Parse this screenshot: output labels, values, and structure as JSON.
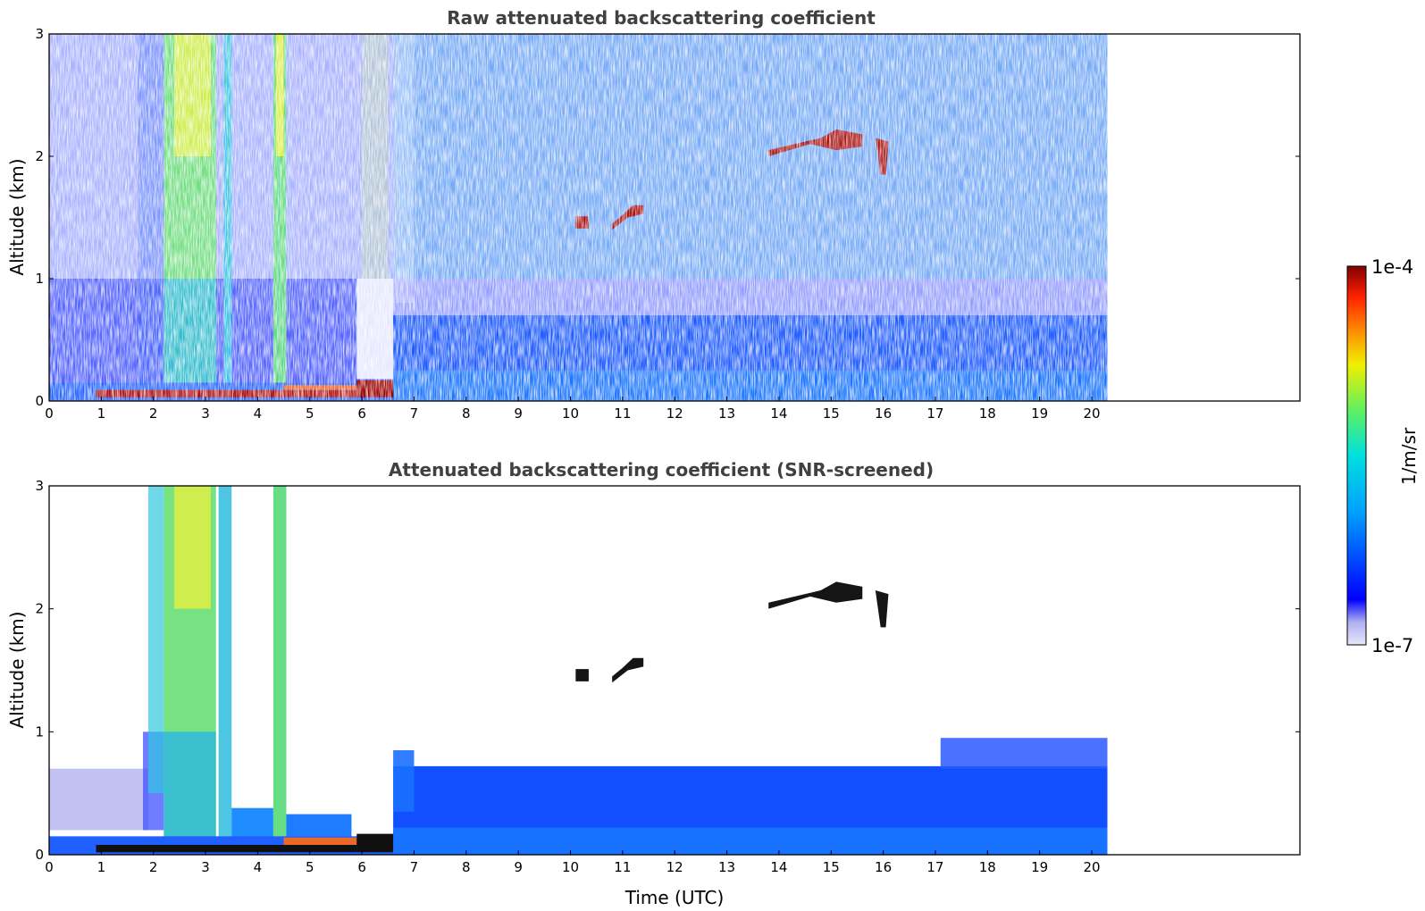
{
  "chart_data": [
    {
      "type": "heatmap",
      "title": "Raw attenuated backscattering coefficient",
      "xlabel": "",
      "ylabel": "Altitude (km)",
      "xlim": [
        0,
        24
      ],
      "ylim": [
        0,
        3
      ],
      "x_ticks": [
        0,
        1,
        2,
        3,
        4,
        5,
        6,
        7,
        8,
        9,
        10,
        11,
        12,
        13,
        14,
        15,
        16,
        17,
        18,
        19,
        20
      ],
      "y_ticks": [
        0,
        1,
        2,
        3
      ],
      "data_end_time": 20.3,
      "colorscale": "jet",
      "features": [
        {
          "name": "surface aerosol layer",
          "t_start": 0,
          "t_end": 6.6,
          "alt_top": 0.15,
          "level": "high"
        },
        {
          "name": "cloud",
          "t_start": 10.1,
          "t_end": 10.35,
          "alt": 1.47,
          "level": "max"
        },
        {
          "name": "cloud",
          "t_start": 10.8,
          "t_end": 11.4,
          "alt": 1.55,
          "level": "max"
        },
        {
          "name": "cloud",
          "t_start": 13.8,
          "t_end": 16.1,
          "alt": 2.1,
          "level": "max"
        },
        {
          "name": "boundary layer",
          "t_start": 6.6,
          "t_end": 20.3,
          "alt_top": 0.7,
          "level": "medium"
        },
        {
          "name": "precipitation / fog columns",
          "t_start": 2.2,
          "t_end": 3.2,
          "alt_top": 3.0,
          "level": "medium-high"
        }
      ]
    },
    {
      "type": "heatmap",
      "title": "Attenuated backscattering coefficient (SNR-screened)",
      "xlabel": "Time (UTC)",
      "ylabel": "Altitude (km)",
      "xlim": [
        0,
        24
      ],
      "ylim": [
        0,
        3
      ],
      "x_ticks": [
        0,
        1,
        2,
        3,
        4,
        5,
        6,
        7,
        8,
        9,
        10,
        11,
        12,
        13,
        14,
        15,
        16,
        17,
        18,
        19,
        20
      ],
      "y_ticks": [
        0,
        1,
        2,
        3
      ],
      "data_end_time": 20.3,
      "colorscale": "jet",
      "features": [
        {
          "name": "surface aerosol layer",
          "t_start": 0,
          "t_end": 6.6,
          "alt_top": 0.2,
          "level": "high"
        },
        {
          "name": "boundary layer",
          "t_start": 6.6,
          "t_end": 20.3,
          "alt_top": 0.85,
          "level": "medium"
        },
        {
          "name": "cloud",
          "t_start": 10.8,
          "t_end": 11.4,
          "alt": 1.55,
          "level": "max"
        },
        {
          "name": "cloud",
          "t_start": 13.8,
          "t_end": 16.1,
          "alt": 2.1,
          "level": "max"
        }
      ]
    }
  ],
  "colorbar": {
    "label": "1/m/sr",
    "max_label": "1e-4",
    "min_label": "1e-7",
    "colors": [
      "#e6e6fa",
      "#0000ff",
      "#00a0ff",
      "#00e0e0",
      "#60f060",
      "#f0f000",
      "#ff8000",
      "#ff2000",
      "#800000"
    ]
  }
}
